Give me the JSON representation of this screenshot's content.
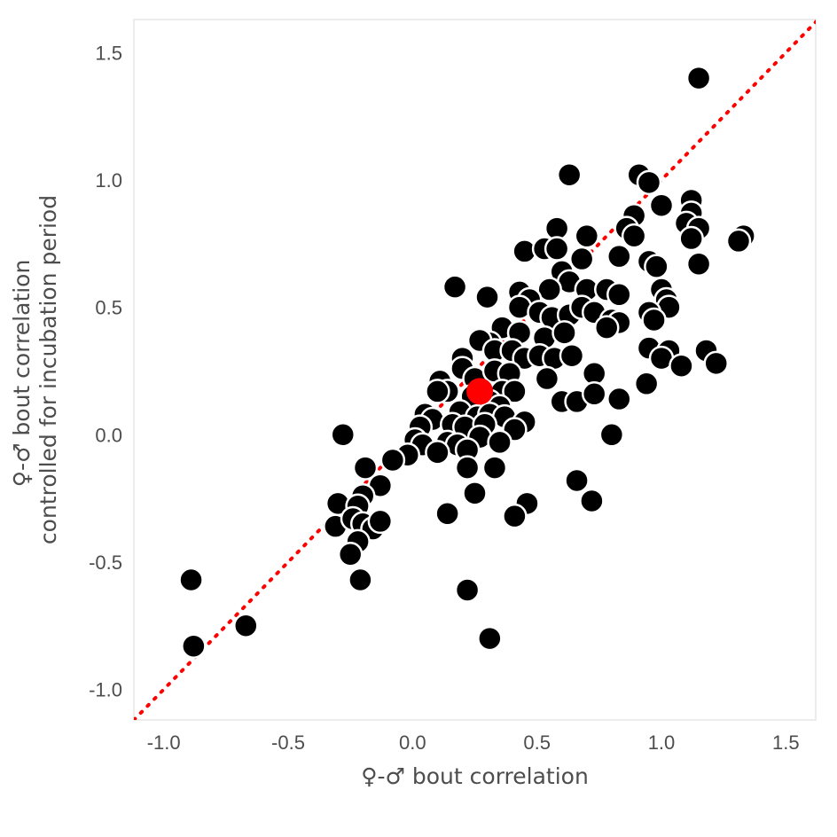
{
  "chart_data": {
    "type": "scatter",
    "title": "",
    "xlabel": "♀-♂ bout correlation",
    "ylabel_lines": [
      "♀-♂ bout correlation",
      "controlled for incubation period"
    ],
    "xlim": [
      -1.12,
      1.62
    ],
    "ylim": [
      -1.12,
      1.63
    ],
    "x_ticks": [
      -1.0,
      -0.5,
      0.0,
      0.5,
      1.0,
      1.5
    ],
    "x_tick_labels": [
      "-1.0",
      "-0.5",
      "0.0",
      "0.5",
      "1.0",
      "1.5"
    ],
    "y_ticks": [
      -1.0,
      -0.5,
      0.0,
      0.5,
      1.0,
      1.5
    ],
    "y_tick_labels": [
      "-1.0",
      "-0.5",
      "0.0",
      "0.5",
      "1.0",
      "1.5"
    ],
    "grid": false,
    "reference_line": {
      "type": "identity",
      "style": "dotted",
      "color": "#ff0000"
    },
    "point_color": "#000000",
    "point_outline": "#ffffff",
    "highlight_color": "#ff0000",
    "highlight_point": {
      "x": 0.27,
      "y": 0.17
    },
    "points": [
      {
        "x": 1.15,
        "y": 1.4
      },
      {
        "x": 0.63,
        "y": 1.02
      },
      {
        "x": 0.91,
        "y": 1.02
      },
      {
        "x": 0.95,
        "y": 0.99
      },
      {
        "x": 1.0,
        "y": 0.9
      },
      {
        "x": 1.12,
        "y": 0.92
      },
      {
        "x": 1.12,
        "y": 0.87
      },
      {
        "x": 1.1,
        "y": 0.83
      },
      {
        "x": 1.15,
        "y": 0.81
      },
      {
        "x": 1.12,
        "y": 0.77
      },
      {
        "x": 1.33,
        "y": 0.78
      },
      {
        "x": 1.31,
        "y": 0.76
      },
      {
        "x": 1.15,
        "y": 0.67
      },
      {
        "x": 0.89,
        "y": 0.86
      },
      {
        "x": 0.86,
        "y": 0.81
      },
      {
        "x": 0.89,
        "y": 0.78
      },
      {
        "x": 0.83,
        "y": 0.7
      },
      {
        "x": 0.95,
        "y": 0.68
      },
      {
        "x": 0.98,
        "y": 0.66
      },
      {
        "x": 0.58,
        "y": 0.81
      },
      {
        "x": 0.7,
        "y": 0.78
      },
      {
        "x": 0.45,
        "y": 0.72
      },
      {
        "x": 0.53,
        "y": 0.73
      },
      {
        "x": 0.58,
        "y": 0.73
      },
      {
        "x": 0.68,
        "y": 0.69
      },
      {
        "x": 0.6,
        "y": 0.64
      },
      {
        "x": 0.17,
        "y": 0.58
      },
      {
        "x": 0.63,
        "y": 0.6
      },
      {
        "x": 0.7,
        "y": 0.57
      },
      {
        "x": 0.78,
        "y": 0.57
      },
      {
        "x": 0.83,
        "y": 0.55
      },
      {
        "x": 1.0,
        "y": 0.57
      },
      {
        "x": 1.02,
        "y": 0.53
      },
      {
        "x": 1.03,
        "y": 0.5
      },
      {
        "x": 0.95,
        "y": 0.48
      },
      {
        "x": 0.97,
        "y": 0.45
      },
      {
        "x": 0.3,
        "y": 0.54
      },
      {
        "x": 0.43,
        "y": 0.56
      },
      {
        "x": 0.55,
        "y": 0.57
      },
      {
        "x": 0.47,
        "y": 0.53
      },
      {
        "x": 0.43,
        "y": 0.5
      },
      {
        "x": 0.51,
        "y": 0.48
      },
      {
        "x": 0.56,
        "y": 0.46
      },
      {
        "x": 0.63,
        "y": 0.47
      },
      {
        "x": 0.68,
        "y": 0.5
      },
      {
        "x": 0.73,
        "y": 0.48
      },
      {
        "x": 0.8,
        "y": 0.45
      },
      {
        "x": 0.83,
        "y": 0.44
      },
      {
        "x": 0.78,
        "y": 0.42
      },
      {
        "x": 0.36,
        "y": 0.42
      },
      {
        "x": 0.43,
        "y": 0.4
      },
      {
        "x": 0.53,
        "y": 0.38
      },
      {
        "x": 0.61,
        "y": 0.4
      },
      {
        "x": 0.31,
        "y": 0.36
      },
      {
        "x": 0.27,
        "y": 0.37
      },
      {
        "x": 0.33,
        "y": 0.33
      },
      {
        "x": 0.4,
        "y": 0.33
      },
      {
        "x": 0.45,
        "y": 0.3
      },
      {
        "x": 0.51,
        "y": 0.31
      },
      {
        "x": 0.57,
        "y": 0.3
      },
      {
        "x": 0.64,
        "y": 0.31
      },
      {
        "x": 0.95,
        "y": 0.34
      },
      {
        "x": 1.03,
        "y": 0.33
      },
      {
        "x": 1.0,
        "y": 0.3
      },
      {
        "x": 1.08,
        "y": 0.27
      },
      {
        "x": 1.18,
        "y": 0.33
      },
      {
        "x": 1.22,
        "y": 0.28
      },
      {
        "x": 0.2,
        "y": 0.3
      },
      {
        "x": 0.2,
        "y": 0.26
      },
      {
        "x": 0.25,
        "y": 0.22
      },
      {
        "x": 0.33,
        "y": 0.25
      },
      {
        "x": 0.39,
        "y": 0.24
      },
      {
        "x": 0.54,
        "y": 0.22
      },
      {
        "x": 0.73,
        "y": 0.24
      },
      {
        "x": 0.94,
        "y": 0.2
      },
      {
        "x": 0.11,
        "y": 0.21
      },
      {
        "x": 0.14,
        "y": 0.17
      },
      {
        "x": 0.1,
        "y": 0.17
      },
      {
        "x": 0.36,
        "y": 0.17
      },
      {
        "x": 0.41,
        "y": 0.17
      },
      {
        "x": 0.24,
        "y": 0.15
      },
      {
        "x": 0.31,
        "y": 0.13
      },
      {
        "x": 0.35,
        "y": 0.11
      },
      {
        "x": 0.6,
        "y": 0.13
      },
      {
        "x": 0.66,
        "y": 0.13
      },
      {
        "x": 0.73,
        "y": 0.16
      },
      {
        "x": 0.83,
        "y": 0.14
      },
      {
        "x": 0.05,
        "y": 0.08
      },
      {
        "x": 0.08,
        "y": 0.06
      },
      {
        "x": 0.19,
        "y": 0.09
      },
      {
        "x": 0.26,
        "y": 0.07
      },
      {
        "x": 0.31,
        "y": 0.08
      },
      {
        "x": 0.37,
        "y": 0.07
      },
      {
        "x": 0.45,
        "y": 0.05
      },
      {
        "x": 0.03,
        "y": 0.03
      },
      {
        "x": 0.16,
        "y": 0.04
      },
      {
        "x": 0.21,
        "y": 0.03
      },
      {
        "x": 0.29,
        "y": 0.04
      },
      {
        "x": 0.41,
        "y": 0.02
      },
      {
        "x": 0.01,
        "y": -0.02
      },
      {
        "x": 0.04,
        "y": -0.04
      },
      {
        "x": 0.14,
        "y": -0.03
      },
      {
        "x": 0.18,
        "y": -0.04
      },
      {
        "x": 0.27,
        "y": -0.01
      },
      {
        "x": 0.35,
        "y": -0.03
      },
      {
        "x": 0.8,
        "y": 0.0
      },
      {
        "x": -0.28,
        "y": 0.0
      },
      {
        "x": 0.1,
        "y": -0.07
      },
      {
        "x": 0.22,
        "y": -0.06
      },
      {
        "x": -0.02,
        "y": -0.08
      },
      {
        "x": -0.08,
        "y": -0.1
      },
      {
        "x": -0.19,
        "y": -0.13
      },
      {
        "x": 0.22,
        "y": -0.13
      },
      {
        "x": 0.33,
        "y": -0.13
      },
      {
        "x": -0.13,
        "y": -0.2
      },
      {
        "x": -0.2,
        "y": -0.24
      },
      {
        "x": 0.66,
        "y": -0.18
      },
      {
        "x": 0.25,
        "y": -0.23
      },
      {
        "x": -0.3,
        "y": -0.27
      },
      {
        "x": -0.22,
        "y": -0.28
      },
      {
        "x": 0.72,
        "y": -0.26
      },
      {
        "x": 0.46,
        "y": -0.27
      },
      {
        "x": 0.14,
        "y": -0.31
      },
      {
        "x": 0.41,
        "y": -0.32
      },
      {
        "x": -0.31,
        "y": -0.36
      },
      {
        "x": -0.24,
        "y": -0.33
      },
      {
        "x": -0.2,
        "y": -0.35
      },
      {
        "x": -0.16,
        "y": -0.37
      },
      {
        "x": -0.13,
        "y": -0.34
      },
      {
        "x": -0.22,
        "y": -0.42
      },
      {
        "x": -0.25,
        "y": -0.47
      },
      {
        "x": -0.89,
        "y": -0.57
      },
      {
        "x": -0.21,
        "y": -0.57
      },
      {
        "x": 0.22,
        "y": -0.61
      },
      {
        "x": -0.67,
        "y": -0.75
      },
      {
        "x": 0.31,
        "y": -0.8
      },
      {
        "x": -0.88,
        "y": -0.83
      }
    ]
  }
}
